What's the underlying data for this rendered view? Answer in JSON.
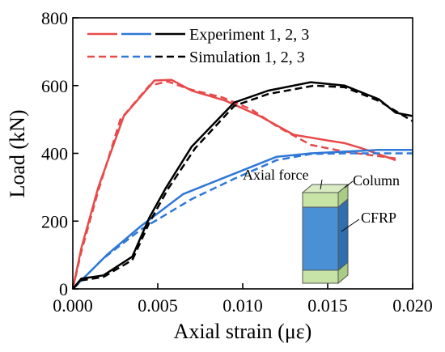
{
  "chart_data": {
    "type": "line",
    "xlabel": "Axial strain (με)",
    "ylabel": "Load (kN)",
    "xlim": [
      0,
      0.02
    ],
    "ylim": [
      0,
      800
    ],
    "x_ticks": [
      0,
      0.005,
      0.01,
      0.015,
      0.02
    ],
    "x_tick_labels": [
      "0.000",
      "0.005",
      "0.010",
      "0.015",
      "0.020"
    ],
    "y_ticks": [
      0,
      200,
      400,
      600,
      800
    ],
    "y_tick_labels": [
      "0",
      "200",
      "400",
      "600",
      "800"
    ],
    "grid": false,
    "legend": {
      "position": "top-left",
      "entries": [
        {
          "label": "Experiment 1, 2, 3",
          "style": "solid"
        },
        {
          "label": "Simulation 1, 2, 3",
          "style": "dashed"
        }
      ]
    },
    "colors": {
      "1": "#e84a4a",
      "2": "#2f78d6",
      "3": "#000000"
    },
    "series": [
      {
        "id": "exp1",
        "color_key": "1",
        "style": "solid",
        "points": [
          [
            0,
            0
          ],
          [
            0.0005,
            120
          ],
          [
            0.0015,
            300
          ],
          [
            0.003,
            510
          ],
          [
            0.0048,
            615
          ],
          [
            0.0058,
            617
          ],
          [
            0.007,
            585
          ],
          [
            0.009,
            555
          ],
          [
            0.011,
            510
          ],
          [
            0.013,
            455
          ],
          [
            0.015,
            438
          ],
          [
            0.016,
            430
          ],
          [
            0.017,
            415
          ],
          [
            0.019,
            380
          ]
        ]
      },
      {
        "id": "sim1",
        "color_key": "1",
        "style": "dashed",
        "points": [
          [
            0,
            0
          ],
          [
            0.0005,
            110
          ],
          [
            0.0015,
            290
          ],
          [
            0.0028,
            500
          ],
          [
            0.0045,
            600
          ],
          [
            0.0056,
            612
          ],
          [
            0.0068,
            590
          ],
          [
            0.0088,
            565
          ],
          [
            0.0105,
            530
          ],
          [
            0.012,
            480
          ],
          [
            0.014,
            425
          ],
          [
            0.016,
            405
          ],
          [
            0.0175,
            395
          ],
          [
            0.019,
            385
          ]
        ]
      },
      {
        "id": "exp2",
        "color_key": "2",
        "style": "solid",
        "points": [
          [
            0,
            0
          ],
          [
            0.002,
            100
          ],
          [
            0.004,
            185
          ],
          [
            0.0065,
            280
          ],
          [
            0.009,
            330
          ],
          [
            0.012,
            390
          ],
          [
            0.014,
            400
          ],
          [
            0.016,
            405
          ],
          [
            0.018,
            410
          ],
          [
            0.02,
            410
          ]
        ]
      },
      {
        "id": "sim2",
        "color_key": "2",
        "style": "dashed",
        "points": [
          [
            0,
            0
          ],
          [
            0.0018,
            90
          ],
          [
            0.004,
            175
          ],
          [
            0.007,
            265
          ],
          [
            0.0095,
            325
          ],
          [
            0.012,
            380
          ],
          [
            0.014,
            398
          ],
          [
            0.016,
            400
          ],
          [
            0.018,
            400
          ],
          [
            0.02,
            400
          ]
        ]
      },
      {
        "id": "exp3",
        "color_key": "3",
        "style": "solid",
        "points": [
          [
            0,
            0
          ],
          [
            0.0005,
            30
          ],
          [
            0.0018,
            40
          ],
          [
            0.0035,
            95
          ],
          [
            0.0045,
            210
          ],
          [
            0.0055,
            300
          ],
          [
            0.007,
            420
          ],
          [
            0.0095,
            550
          ],
          [
            0.0115,
            585
          ],
          [
            0.014,
            610
          ],
          [
            0.016,
            600
          ],
          [
            0.018,
            560
          ],
          [
            0.019,
            520
          ],
          [
            0.02,
            510
          ]
        ]
      },
      {
        "id": "sim3",
        "color_key": "3",
        "style": "dashed",
        "points": [
          [
            0,
            0
          ],
          [
            0.0005,
            25
          ],
          [
            0.0018,
            35
          ],
          [
            0.0035,
            85
          ],
          [
            0.0045,
            195
          ],
          [
            0.0056,
            295
          ],
          [
            0.0072,
            415
          ],
          [
            0.0095,
            540
          ],
          [
            0.0115,
            575
          ],
          [
            0.0142,
            600
          ],
          [
            0.016,
            595
          ],
          [
            0.018,
            555
          ],
          [
            0.02,
            495
          ]
        ]
      }
    ],
    "inset": {
      "labels": {
        "axial_force": "Axial force",
        "column": "Column",
        "cfrp": "CFRP"
      },
      "colors": {
        "column_face": "#c7e3a6",
        "column_top": "#d9ecc2",
        "column_side": "#a9cc84",
        "cfrp_face": "#4a90d4",
        "cfrp_side": "#2f6fb0"
      }
    }
  }
}
